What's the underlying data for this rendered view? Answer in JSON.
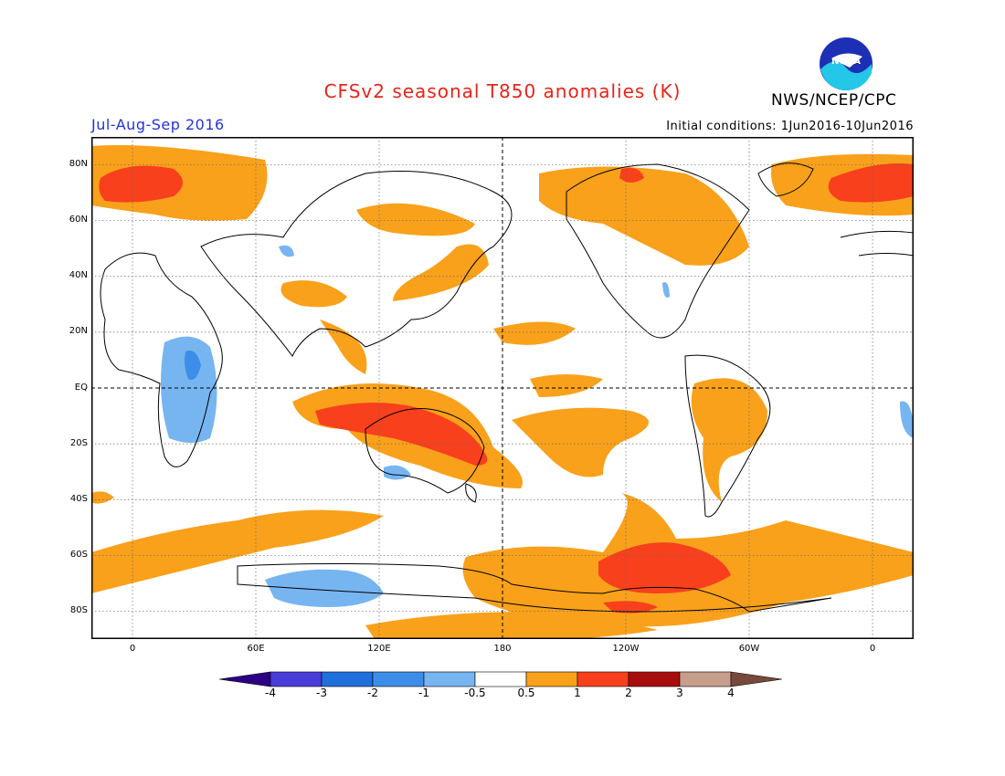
{
  "header": {
    "title": "CFSv2 seasonal T850 anomalies (K)",
    "org": "NWS/NCEP/CPC",
    "season": "Jul-Aug-Sep 2016",
    "initial_conditions": "Initial conditions: 1Jun2016-10Jun2016",
    "logo_text": "NOAA"
  },
  "map": {
    "projection": "cylindrical-equidistant",
    "lon_range": [
      -20,
      380
    ],
    "lat_range": [
      -90,
      90
    ],
    "lat_labels": [
      "80N",
      "60N",
      "40N",
      "20N",
      "EQ",
      "20S",
      "40S",
      "60S",
      "80S"
    ],
    "lon_labels": [
      "0",
      "60E",
      "120E",
      "180",
      "120W",
      "60W",
      "0"
    ],
    "colors": {
      "warm_0_5_1": "#f9a11b",
      "warm_1_2": "#f8401d",
      "cool_minus_1_minus_0_5": "#77b5f1",
      "cool_minus_2_minus_1": "#3d8ee8"
    }
  },
  "colorbar": {
    "labels": [
      "-4",
      "-3",
      "-2",
      "-1",
      "-0.5",
      "0.5",
      "1",
      "2",
      "3",
      "4"
    ],
    "colors": [
      "#2b0085",
      "#4a3cd9",
      "#1f6fdc",
      "#3d8ee8",
      "#77b5f1",
      "#ffffff",
      "#f9a11b",
      "#f8401d",
      "#a80e0e",
      "#c79d8b",
      "#77493a"
    ]
  }
}
